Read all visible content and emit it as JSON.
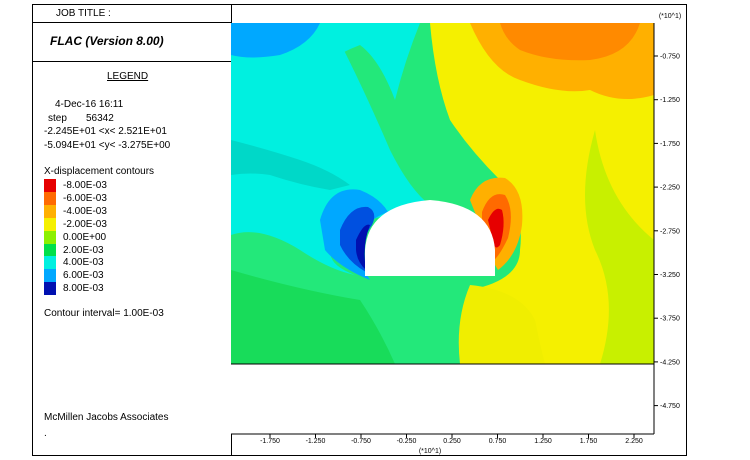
{
  "header": {
    "job_title_label": "JOB TITLE :",
    "program": "FLAC (Version 8.00)",
    "scale_tag": "(*10^1)"
  },
  "legend": {
    "title": "LEGEND",
    "date_time": "4-Dec-16  16:11",
    "step_label": "step",
    "step_value": "56342",
    "x_range": "-2.245E+01 <x<  2.521E+01",
    "y_range": "-5.094E+01 <y< -3.275E+00",
    "contour_title": "X-displacement contours",
    "contour_interval": "Contour interval=  1.00E-03",
    "company": "McMillen Jacobs Associates",
    "footnote": "."
  },
  "chart_data": {
    "type": "heatmap",
    "title": "X-displacement contours",
    "contour_levels": [
      {
        "value": "-8.00E-03",
        "color": "#e60000"
      },
      {
        "value": "-6.00E-03",
        "color": "#ff6a00"
      },
      {
        "value": "-4.00E-03",
        "color": "#ffb000"
      },
      {
        "value": "-2.00E-03",
        "color": "#f5f000"
      },
      {
        "value": "0.00E+00",
        "color": "#8cf000"
      },
      {
        "value": "2.00E-03",
        "color": "#00e04a"
      },
      {
        "value": "4.00E-03",
        "color": "#00f0e0"
      },
      {
        "value": "6.00E-03",
        "color": "#00a8ff"
      },
      {
        "value": "8.00E-03",
        "color": "#0010b0"
      }
    ],
    "x_ticks": [
      "-1.750",
      "-1.250",
      "-0.750",
      "-0.250",
      "0.250",
      "0.750",
      "1.250",
      "1.750",
      "2.250"
    ],
    "x_tick_values": [
      -1.75,
      -1.25,
      -0.75,
      -0.25,
      0.25,
      0.75,
      1.25,
      1.75,
      2.25
    ],
    "y_ticks": [
      "-0.750",
      "-1.250",
      "-1.750",
      "-2.250",
      "-2.750",
      "-3.250",
      "-3.750",
      "-4.250",
      "-4.750"
    ],
    "y_tick_values": [
      -0.75,
      -1.25,
      -1.75,
      -2.25,
      -2.75,
      -3.25,
      -3.75,
      -4.25,
      -4.75
    ],
    "x_scale_label": "(*10^1)",
    "y_scale_label": "(*10^1)",
    "xlim": [
      -2.245,
      2.521
    ],
    "ylim": [
      -5.094,
      -0.3275
    ],
    "colors": {
      "background": "#23e87a",
      "excavation": "#ffffff"
    }
  }
}
